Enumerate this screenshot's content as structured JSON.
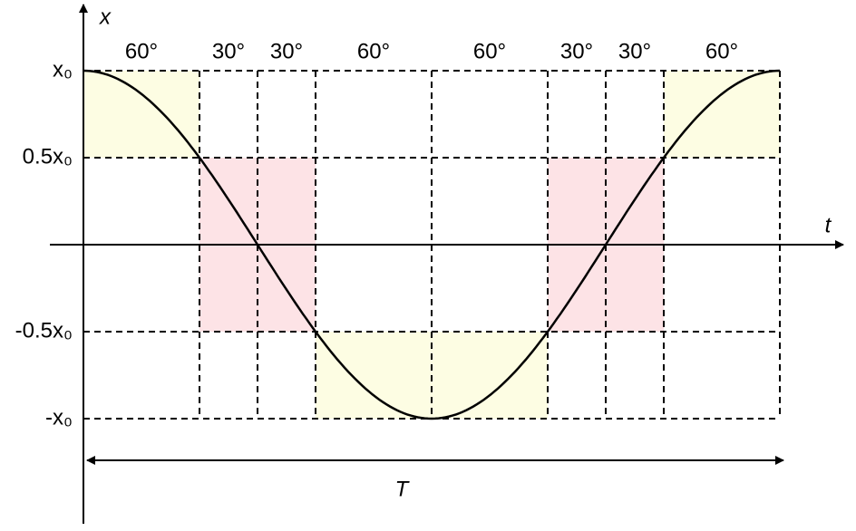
{
  "axes": {
    "vertical_label": "x",
    "horizontal_label": "t"
  },
  "y_labels": [
    "x₀",
    "0.5x₀",
    "-0.5x₀",
    "-x₀"
  ],
  "segments": [
    "60°",
    "30°",
    "30°",
    "60°",
    "60°",
    "30°",
    "30°",
    "60°"
  ],
  "period_label": "T"
}
